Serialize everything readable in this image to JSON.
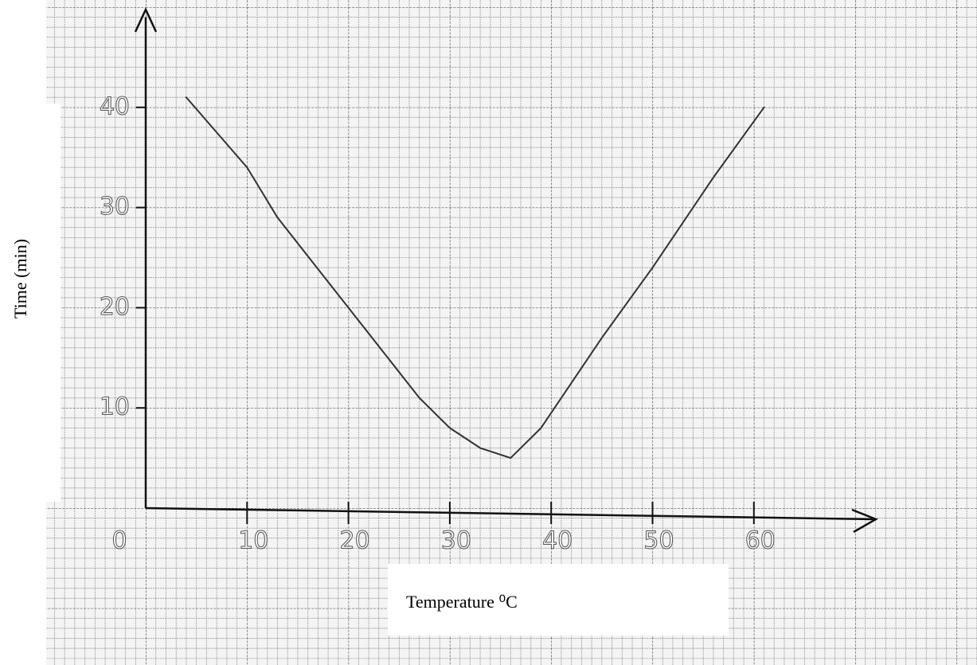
{
  "chart_data": {
    "type": "line",
    "x_label": "Temperature ⁰C",
    "y_label": "Time (min)",
    "x": [
      4,
      10,
      13,
      20,
      27,
      30,
      33,
      36,
      39,
      45,
      50,
      56,
      61
    ],
    "values": [
      41,
      34,
      29,
      20,
      11,
      8,
      6,
      5,
      8,
      17,
      24,
      33,
      40
    ],
    "color": "#333333",
    "xlim": [
      0,
      72
    ],
    "ylim": [
      0,
      49
    ],
    "xticks": [
      0,
      10,
      20,
      30,
      40,
      50,
      60
    ],
    "yticks": [
      10,
      20,
      30,
      40
    ]
  }
}
